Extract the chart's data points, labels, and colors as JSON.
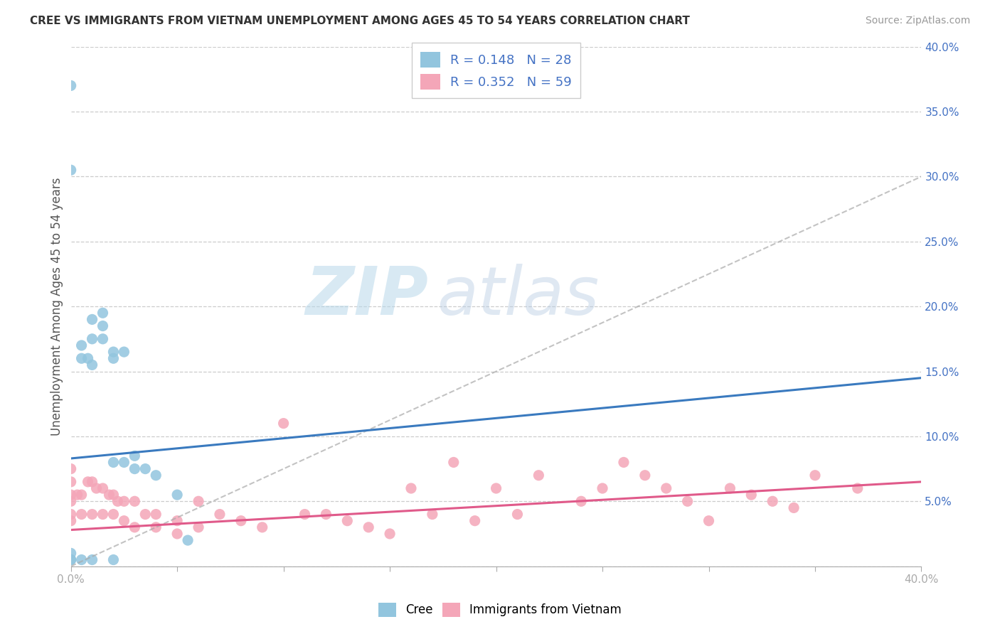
{
  "title": "CREE VS IMMIGRANTS FROM VIETNAM UNEMPLOYMENT AMONG AGES 45 TO 54 YEARS CORRELATION CHART",
  "source": "Source: ZipAtlas.com",
  "ylabel": "Unemployment Among Ages 45 to 54 years",
  "xlim": [
    0.0,
    0.4
  ],
  "ylim": [
    0.0,
    0.4
  ],
  "tick_positions": [
    0.0,
    0.05,
    0.1,
    0.15,
    0.2,
    0.25,
    0.3,
    0.35,
    0.4
  ],
  "ytick_labels": [
    "",
    "5.0%",
    "10.0%",
    "15.0%",
    "20.0%",
    "25.0%",
    "30.0%",
    "35.0%",
    "40.0%"
  ],
  "xtick_labels": [
    "0.0%",
    "",
    "",
    "",
    "",
    "",
    "",
    "",
    "40.0%"
  ],
  "cree_color": "#92c5de",
  "vietnam_color": "#f4a6b8",
  "cree_line_color": "#3a7abf",
  "vietnam_line_color": "#e05a8a",
  "dashed_line_color": "#aaaaaa",
  "legend_color": "#4472c4",
  "axis_tick_color": "#4472c4",
  "cree_R": 0.148,
  "cree_N": 28,
  "vietnam_R": 0.352,
  "vietnam_N": 59,
  "watermark_text": "ZIP",
  "watermark_text2": "atlas",
  "cree_x": [
    0.0,
    0.0,
    0.0,
    0.0,
    0.0,
    0.005,
    0.005,
    0.008,
    0.01,
    0.01,
    0.01,
    0.015,
    0.015,
    0.015,
    0.02,
    0.02,
    0.02,
    0.025,
    0.025,
    0.03,
    0.03,
    0.035,
    0.04,
    0.05,
    0.055,
    0.005,
    0.01,
    0.02
  ],
  "cree_y": [
    0.37,
    0.305,
    0.01,
    0.005,
    0.005,
    0.17,
    0.16,
    0.16,
    0.19,
    0.175,
    0.155,
    0.195,
    0.185,
    0.175,
    0.165,
    0.16,
    0.08,
    0.165,
    0.08,
    0.085,
    0.075,
    0.075,
    0.07,
    0.055,
    0.02,
    0.005,
    0.005,
    0.005
  ],
  "vietnam_x": [
    0.0,
    0.0,
    0.0,
    0.0,
    0.0,
    0.0,
    0.003,
    0.005,
    0.005,
    0.008,
    0.01,
    0.01,
    0.012,
    0.015,
    0.015,
    0.018,
    0.02,
    0.02,
    0.022,
    0.025,
    0.025,
    0.03,
    0.03,
    0.035,
    0.04,
    0.04,
    0.05,
    0.05,
    0.06,
    0.06,
    0.07,
    0.08,
    0.09,
    0.1,
    0.11,
    0.12,
    0.13,
    0.14,
    0.15,
    0.16,
    0.17,
    0.18,
    0.19,
    0.2,
    0.21,
    0.22,
    0.24,
    0.25,
    0.26,
    0.27,
    0.28,
    0.29,
    0.3,
    0.31,
    0.32,
    0.33,
    0.34,
    0.35,
    0.37
  ],
  "vietnam_y": [
    0.075,
    0.065,
    0.055,
    0.05,
    0.04,
    0.035,
    0.055,
    0.055,
    0.04,
    0.065,
    0.065,
    0.04,
    0.06,
    0.06,
    0.04,
    0.055,
    0.055,
    0.04,
    0.05,
    0.05,
    0.035,
    0.05,
    0.03,
    0.04,
    0.04,
    0.03,
    0.035,
    0.025,
    0.05,
    0.03,
    0.04,
    0.035,
    0.03,
    0.11,
    0.04,
    0.04,
    0.035,
    0.03,
    0.025,
    0.06,
    0.04,
    0.08,
    0.035,
    0.06,
    0.04,
    0.07,
    0.05,
    0.06,
    0.08,
    0.07,
    0.06,
    0.05,
    0.035,
    0.06,
    0.055,
    0.05,
    0.045,
    0.07,
    0.06
  ],
  "cree_line_x0": 0.0,
  "cree_line_y0": 0.083,
  "cree_line_x1": 0.4,
  "cree_line_y1": 0.145,
  "vietnam_line_x0": 0.0,
  "vietnam_line_y0": 0.028,
  "vietnam_line_x1": 0.4,
  "vietnam_line_y1": 0.065,
  "dashed_line_x0": 0.0,
  "dashed_line_y0": 0.0,
  "dashed_line_x1": 0.4,
  "dashed_line_y1": 0.3
}
